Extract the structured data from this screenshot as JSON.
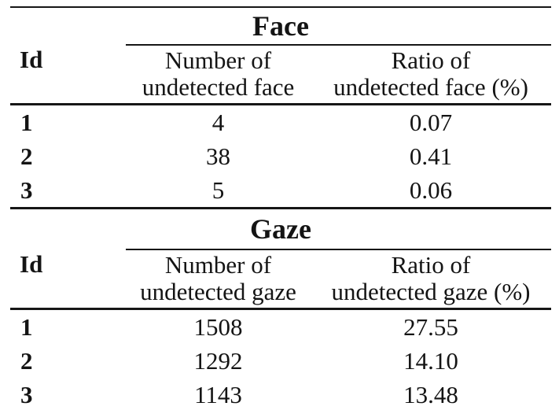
{
  "figure": {
    "background_color": "#ffffff",
    "text_color": "#141414",
    "rule_color": "#161616"
  },
  "tables": [
    {
      "title": "Face",
      "id_header": "Id",
      "count_header": {
        "line1": "Number of",
        "line2": "undetected face"
      },
      "ratio_header": {
        "line1": "Ratio of",
        "line2": "undetected face (%)"
      },
      "rows": [
        {
          "id": "1",
          "count": "4",
          "ratio": "0.07"
        },
        {
          "id": "2",
          "count": "38",
          "ratio": "0.41"
        },
        {
          "id": "3",
          "count": "5",
          "ratio": "0.06"
        }
      ]
    },
    {
      "title": "Gaze",
      "id_header": "Id",
      "count_header": {
        "line1": "Number of",
        "line2": "undetected gaze"
      },
      "ratio_header": {
        "line1": "Ratio of",
        "line2": "undetected gaze (%)"
      },
      "rows": [
        {
          "id": "1",
          "count": "1508",
          "ratio": "27.55"
        },
        {
          "id": "2",
          "count": "1292",
          "ratio": "14.10"
        },
        {
          "id": "3",
          "count": "1143",
          "ratio": "13.48"
        }
      ]
    }
  ]
}
